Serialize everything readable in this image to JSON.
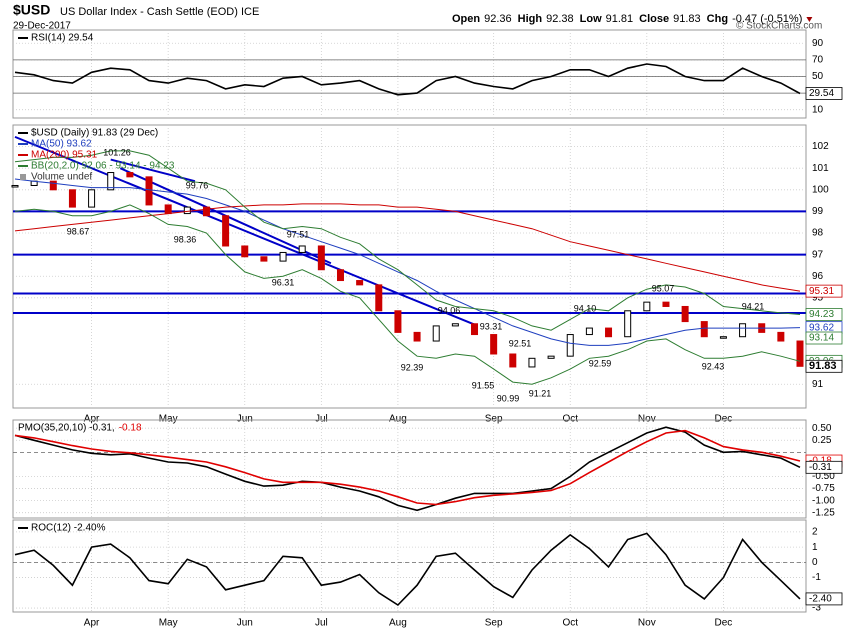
{
  "header": {
    "symbol": "$USD",
    "name": "US Dollar Index - Cash Settle (EOD) ICE",
    "date": "29-Dec-2017",
    "quote": [
      {
        "label": "Open",
        "value": 92.36
      },
      {
        "label": "High",
        "value": 92.38
      },
      {
        "label": "Low",
        "value": 91.81
      },
      {
        "label": "Close",
        "value": 91.83
      }
    ],
    "change_label": "Chg",
    "change": "-0.47 (-0.51%)",
    "copyright": "© StockCharts.com"
  },
  "chart_data": [
    {
      "type": "line",
      "ylim": [
        0,
        106
      ],
      "yticks": [
        90,
        70,
        50,
        10
      ],
      "reference_lines": [
        70,
        50,
        30
      ],
      "series": [
        {
          "name": "RSI(14) 29.54",
          "color": "#000000",
          "values": [
            55,
            52,
            45,
            42,
            55,
            60,
            58,
            45,
            42,
            48,
            45,
            35,
            40,
            38,
            48,
            50,
            40,
            42,
            45,
            35,
            28,
            30,
            45,
            50,
            42,
            38,
            35,
            45,
            50,
            58,
            58,
            50,
            60,
            65,
            62,
            50,
            45,
            45,
            60,
            50,
            42,
            29.54
          ]
        }
      ],
      "tags": [
        29.54
      ],
      "tag_colors": [
        "#000000"
      ]
    },
    {
      "type": "price",
      "categories": [
        null,
        null,
        null,
        null,
        "Apr",
        null,
        null,
        null,
        "May",
        null,
        null,
        null,
        "Jun",
        null,
        null,
        null,
        "Jul",
        null,
        null,
        null,
        "Aug",
        null,
        null,
        null,
        null,
        "Sep",
        null,
        null,
        null,
        "Oct",
        null,
        null,
        null,
        "Nov",
        null,
        null,
        null,
        "Dec",
        null,
        null,
        null,
        null
      ],
      "ylim": [
        89.9,
        103
      ],
      "yticks": [
        102,
        101,
        100,
        99,
        98,
        97,
        96,
        95,
        91
      ],
      "series": [
        {
          "name": "$USD (Daily) 91.83 (29 Dec)",
          "color": "#000000",
          "down_color": "#cc0000",
          "values": [
            100.2,
            100.4,
            100.0,
            99.2,
            100.0,
            100.8,
            100.6,
            99.3,
            98.9,
            99.2,
            98.8,
            97.4,
            96.9,
            96.7,
            97.1,
            97.4,
            96.3,
            95.8,
            95.6,
            94.4,
            93.4,
            93.0,
            93.7,
            93.8,
            93.3,
            92.4,
            91.8,
            92.2,
            92.3,
            93.3,
            93.6,
            93.2,
            94.4,
            94.8,
            94.6,
            93.9,
            93.2,
            93.2,
            93.8,
            93.4,
            93.0,
            91.83
          ]
        },
        {
          "name": "MA(50) 93.62",
          "color": "#1f3fbf",
          "values": [
            100.5,
            100.4,
            100.3,
            100.2,
            100.1,
            100.1,
            100.1,
            100.0,
            99.9,
            99.8,
            99.6,
            99.3,
            99.0,
            98.6,
            98.2,
            97.9,
            97.6,
            97.3,
            97.0,
            96.6,
            96.2,
            95.8,
            95.3,
            94.9,
            94.5,
            94.1,
            93.7,
            93.4,
            93.1,
            92.9,
            92.8,
            92.8,
            92.9,
            93.1,
            93.3,
            93.5,
            93.6,
            93.6,
            93.6,
            93.6,
            93.6,
            93.62
          ]
        },
        {
          "name": "MA(200) 95.31",
          "color": "#cc0000",
          "values": [
            98.1,
            98.2,
            98.3,
            98.4,
            98.5,
            98.6,
            98.7,
            98.8,
            98.9,
            99.0,
            99.1,
            99.2,
            99.25,
            99.3,
            99.3,
            99.35,
            99.35,
            99.35,
            99.3,
            99.3,
            99.2,
            99.2,
            99.1,
            99.0,
            98.8,
            98.6,
            98.4,
            98.2,
            97.9,
            97.6,
            97.4,
            97.2,
            97.0,
            96.8,
            96.6,
            96.4,
            96.2,
            96.0,
            95.8,
            95.6,
            95.45,
            95.31
          ]
        },
        {
          "name": "BB(20,2.0) 92.06 - 93.14 - 94.23",
          "color": "#2e7d32",
          "upper": [
            101.3,
            101.4,
            101.5,
            101.5,
            101.6,
            101.8,
            101.8,
            101.6,
            101.0,
            100.4,
            100.3,
            100.0,
            99.2,
            98.5,
            98.2,
            98.3,
            98.2,
            97.8,
            97.5,
            96.8,
            96.3,
            95.6,
            94.9,
            94.6,
            94.5,
            94.4,
            94.1,
            93.7,
            93.5,
            94.0,
            94.5,
            94.4,
            95.0,
            95.4,
            95.6,
            95.5,
            95.2,
            94.6,
            94.5,
            94.4,
            94.3,
            94.23
          ],
          "lower": [
            99.0,
            99.1,
            99.0,
            98.8,
            98.8,
            99.0,
            99.3,
            98.9,
            98.4,
            98.3,
            98.0,
            97.0,
            96.2,
            95.9,
            96.0,
            96.3,
            95.9,
            95.3,
            95.0,
            94.0,
            93.0,
            92.3,
            92.2,
            92.4,
            92.3,
            91.7,
            91.1,
            91.0,
            91.3,
            91.7,
            92.2,
            92.3,
            92.6,
            93.0,
            93.1,
            92.6,
            92.2,
            92.2,
            92.3,
            92.5,
            92.3,
            92.06
          ]
        }
      ],
      "legend_extra": "Volume undef",
      "hlines": [
        99,
        97,
        95.2,
        94.3
      ],
      "hline_color": "#0000c8",
      "trendlines": [
        [
          [
            0,
            102.45
          ],
          [
            24,
            93.76
          ]
        ],
        [
          [
            5,
            101.4
          ],
          [
            9.4,
            100.4
          ]
        ],
        [
          [
            5.5,
            101.0
          ],
          [
            16.5,
            96.6
          ]
        ]
      ],
      "annotations": [
        101.26,
        99.76,
        98.67,
        98.36,
        97.51,
        96.31,
        94.06,
        93.31,
        92.39,
        92.51,
        91.55,
        90.99,
        91.21,
        {
          "value": 94.1,
          "label": "94.10"
        },
        92.59,
        95.07,
        94.21,
        92.43
      ],
      "tags": [
        95.31,
        94.23,
        93.62,
        93.14,
        92.06,
        91.83
      ],
      "tag_colors": [
        "#cc0000",
        "#2e7d32",
        "#1f3fbf",
        "#2e7d32",
        "#2e7d32",
        "#000000"
      ]
    },
    {
      "type": "line",
      "ylim": [
        -1.36,
        0.67
      ],
      "yticks": [
        {
          "value": 0.5,
          "label": "0.50"
        },
        0.25,
        {
          "value": -0.5,
          "label": "-0.50"
        },
        -0.75,
        {
          "value": -1,
          "label": "-1.00"
        },
        -1.25
      ],
      "reference_lines": [
        0
      ],
      "series": [
        {
          "name": "PMO(35,20,10) -0.31,",
          "color": "#000000",
          "values": [
            0.35,
            0.25,
            0.15,
            0.05,
            -0.02,
            -0.05,
            -0.03,
            -0.12,
            -0.2,
            -0.22,
            -0.3,
            -0.45,
            -0.6,
            -0.7,
            -0.68,
            -0.6,
            -0.62,
            -0.72,
            -0.8,
            -0.92,
            -1.1,
            -1.2,
            -1.08,
            -0.95,
            -0.85,
            -0.85,
            -0.85,
            -0.8,
            -0.75,
            -0.5,
            -0.2,
            0.0,
            0.2,
            0.4,
            0.52,
            0.42,
            0.15,
            0.0,
            0.02,
            -0.05,
            -0.12,
            -0.31
          ]
        },
        {
          "name": "-0.18",
          "color": "#e00000",
          "values": [
            0.35,
            0.3,
            0.22,
            0.14,
            0.07,
            0.02,
            -0.01,
            -0.05,
            -0.1,
            -0.15,
            -0.2,
            -0.3,
            -0.42,
            -0.55,
            -0.62,
            -0.62,
            -0.62,
            -0.66,
            -0.72,
            -0.8,
            -0.92,
            -1.05,
            -1.08,
            -1.02,
            -0.94,
            -0.89,
            -0.86,
            -0.83,
            -0.79,
            -0.65,
            -0.42,
            -0.2,
            0.02,
            0.22,
            0.4,
            0.45,
            0.3,
            0.12,
            0.05,
            0.0,
            -0.08,
            -0.18
          ]
        }
      ],
      "tags": [
        -0.18,
        -0.31
      ],
      "tag_colors": [
        "#e00000",
        "#000000"
      ]
    },
    {
      "type": "line",
      "ylim": [
        -3.26,
        2.78
      ],
      "yticks": [
        2,
        1,
        0,
        -1,
        -3
      ],
      "reference_lines": [
        0
      ],
      "series": [
        {
          "name": "ROC(12) -2.40%",
          "color": "#000000",
          "values": [
            0.5,
            0.8,
            -0.2,
            -1.5,
            1,
            1.2,
            0.3,
            -1.2,
            -1.4,
            0.2,
            -0.3,
            -1.8,
            -1.5,
            -1.2,
            0.4,
            0.3,
            -1.5,
            -1.3,
            -0.8,
            -2,
            -2.8,
            -1.5,
            0.4,
            0.6,
            -0.5,
            -1.6,
            -2.3,
            -0.5,
            0.8,
            1.8,
            0.9,
            -0.3,
            1.5,
            1.9,
            0.5,
            -1.5,
            -2.4,
            -1,
            1.5,
            0,
            -1.2,
            -2.4
          ]
        }
      ],
      "tags": [
        {
          "value": -2.4,
          "label": "-2.40"
        }
      ],
      "tag_colors": [
        "#000000"
      ]
    }
  ]
}
